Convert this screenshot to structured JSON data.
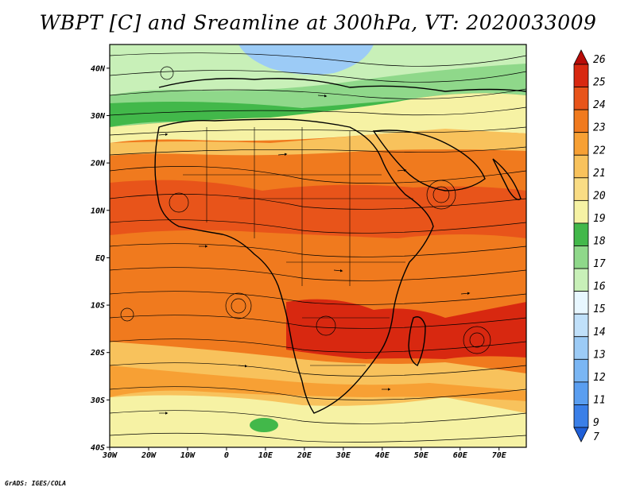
{
  "title": "WBPT [C] and Sreamline at 300hPa, VT: 2020033009",
  "credit": "GrADS: IGES/COLA",
  "map": {
    "lon_range": [
      -30,
      77
    ],
    "lat_range": [
      -40,
      45
    ],
    "lat_ticks": [
      {
        "value": 40,
        "label": "40N"
      },
      {
        "value": 30,
        "label": "30N"
      },
      {
        "value": 20,
        "label": "20N"
      },
      {
        "value": 10,
        "label": "10N"
      },
      {
        "value": 0,
        "label": "EQ"
      },
      {
        "value": -10,
        "label": "10S"
      },
      {
        "value": -20,
        "label": "20S"
      },
      {
        "value": -30,
        "label": "30S"
      },
      {
        "value": -40,
        "label": "40S"
      }
    ],
    "lon_ticks": [
      {
        "value": -30,
        "label": "30W"
      },
      {
        "value": -20,
        "label": "20W"
      },
      {
        "value": -10,
        "label": "10W"
      },
      {
        "value": 0,
        "label": "0"
      },
      {
        "value": 10,
        "label": "10E"
      },
      {
        "value": 20,
        "label": "20E"
      },
      {
        "value": 30,
        "label": "30E"
      },
      {
        "value": 40,
        "label": "40E"
      },
      {
        "value": 50,
        "label": "50E"
      },
      {
        "value": 60,
        "label": "60E"
      },
      {
        "value": 70,
        "label": "70E"
      }
    ]
  },
  "colorbar": {
    "levels": [
      "7",
      "9",
      "11",
      "12",
      "13",
      "14",
      "15",
      "16",
      "17",
      "18",
      "19",
      "20",
      "21",
      "22",
      "23",
      "24",
      "25",
      "26"
    ],
    "colors": [
      "#1f5fd8",
      "#3a7fe8",
      "#5a9ef0",
      "#7ab6f4",
      "#9ccbf6",
      "#c0e0fa",
      "#e8f7ff",
      "#c8f0b8",
      "#8fd88a",
      "#42b84a",
      "#f6f2a4",
      "#f9dc84",
      "#f8c25c",
      "#f7a034",
      "#f07a1e",
      "#e8541a",
      "#d82810",
      "#b80c08"
    ]
  }
}
